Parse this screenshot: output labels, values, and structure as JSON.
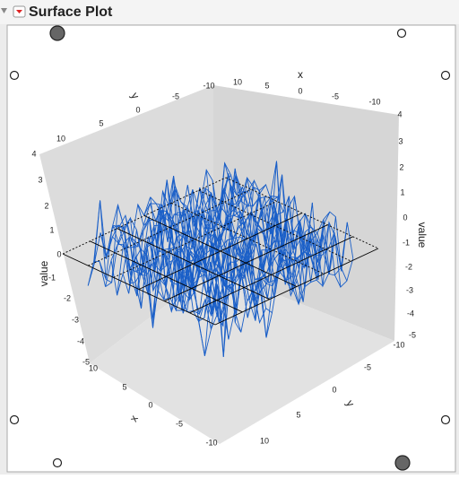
{
  "header": {
    "title": "Surface Plot"
  },
  "plot": {
    "value_left": {
      "label": "value",
      "ticks": [
        "4",
        "3",
        "2",
        "1",
        "0",
        "-1",
        "-2",
        "-3",
        "-4",
        "-5"
      ]
    },
    "value_right": {
      "label": "value",
      "ticks": [
        "4",
        "3",
        "2",
        "1",
        "0",
        "-1",
        "-2",
        "-3",
        "-4",
        "-5"
      ]
    },
    "y_top": {
      "label": "y",
      "ticks": [
        "10",
        "5",
        "0",
        "-5",
        "-10"
      ]
    },
    "x_top": {
      "label": "x",
      "ticks": [
        "10",
        "5",
        "0",
        "-5",
        "-10"
      ]
    },
    "x_bottom": {
      "label": "x",
      "ticks": [
        "10",
        "5",
        "0",
        "-5",
        "-10"
      ]
    },
    "y_bottom": {
      "label": "y",
      "ticks": [
        "-10",
        "-5",
        "0",
        "5",
        "10"
      ]
    }
  }
}
